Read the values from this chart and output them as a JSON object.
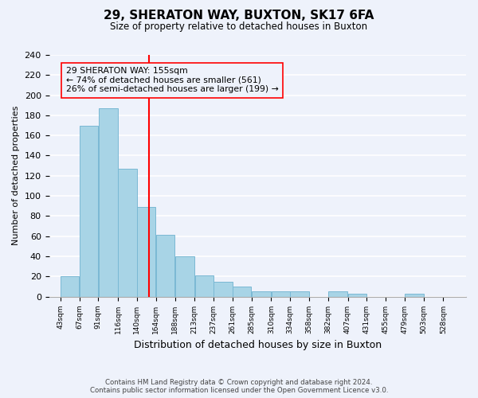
{
  "title": "29, SHERATON WAY, BUXTON, SK17 6FA",
  "subtitle": "Size of property relative to detached houses in Buxton",
  "xlabel": "Distribution of detached houses by size in Buxton",
  "ylabel": "Number of detached properties",
  "bar_left_edges": [
    43,
    67,
    91,
    116,
    140,
    164,
    188,
    213,
    237,
    261,
    285,
    310,
    334,
    358,
    382,
    407,
    431,
    455,
    479,
    503
  ],
  "bar_heights": [
    20,
    170,
    187,
    127,
    89,
    61,
    40,
    21,
    15,
    10,
    5,
    5,
    5,
    0,
    5,
    3,
    0,
    0,
    3,
    0
  ],
  "bar_widths": [
    24,
    24,
    25,
    24,
    24,
    24,
    25,
    24,
    24,
    24,
    25,
    24,
    24,
    24,
    25,
    24,
    24,
    24,
    25,
    25
  ],
  "tick_labels": [
    "43sqm",
    "67sqm",
    "91sqm",
    "116sqm",
    "140sqm",
    "164sqm",
    "188sqm",
    "213sqm",
    "237sqm",
    "261sqm",
    "285sqm",
    "310sqm",
    "334sqm",
    "358sqm",
    "382sqm",
    "407sqm",
    "431sqm",
    "455sqm",
    "479sqm",
    "503sqm",
    "528sqm"
  ],
  "tick_positions": [
    43,
    67,
    91,
    116,
    140,
    164,
    188,
    213,
    237,
    261,
    285,
    310,
    334,
    358,
    382,
    407,
    431,
    455,
    479,
    503,
    528
  ],
  "bar_color": "#a8d4e6",
  "bar_edge_color": "#7ab8d4",
  "reference_line_x": 155,
  "reference_line_color": "red",
  "ylim": [
    0,
    240
  ],
  "yticks": [
    0,
    20,
    40,
    60,
    80,
    100,
    120,
    140,
    160,
    180,
    200,
    220,
    240
  ],
  "annotation_box_text": "29 SHERATON WAY: 155sqm\n← 74% of detached houses are smaller (561)\n26% of semi-detached houses are larger (199) →",
  "footer_line1": "Contains HM Land Registry data © Crown copyright and database right 2024.",
  "footer_line2": "Contains public sector information licensed under the Open Government Licence v3.0.",
  "bg_color": "#eef2fb",
  "grid_color": "white"
}
